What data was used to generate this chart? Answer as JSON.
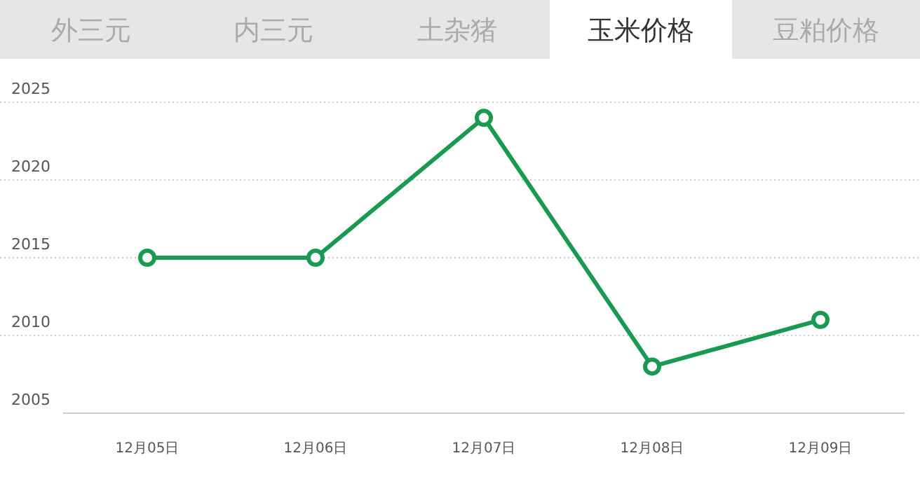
{
  "chart_data": {
    "type": "line",
    "title": "玉米价格",
    "annotations": [
      "外三元",
      "内三元",
      "土杂猪",
      "豆粕价格"
    ],
    "categories": [
      "12月05日",
      "12月06日",
      "12月07日",
      "12月08日",
      "12月09日"
    ],
    "series": [
      {
        "color": "#1a9a50",
        "values": [
          2015,
          2015,
          2024,
          2008,
          2011
        ]
      }
    ],
    "ylim": [
      2005,
      2025
    ],
    "yticks": [
      2005,
      2010,
      2015,
      2020,
      2025
    ],
    "grid": "y",
    "marker": "circle",
    "line_style": "solid"
  }
}
